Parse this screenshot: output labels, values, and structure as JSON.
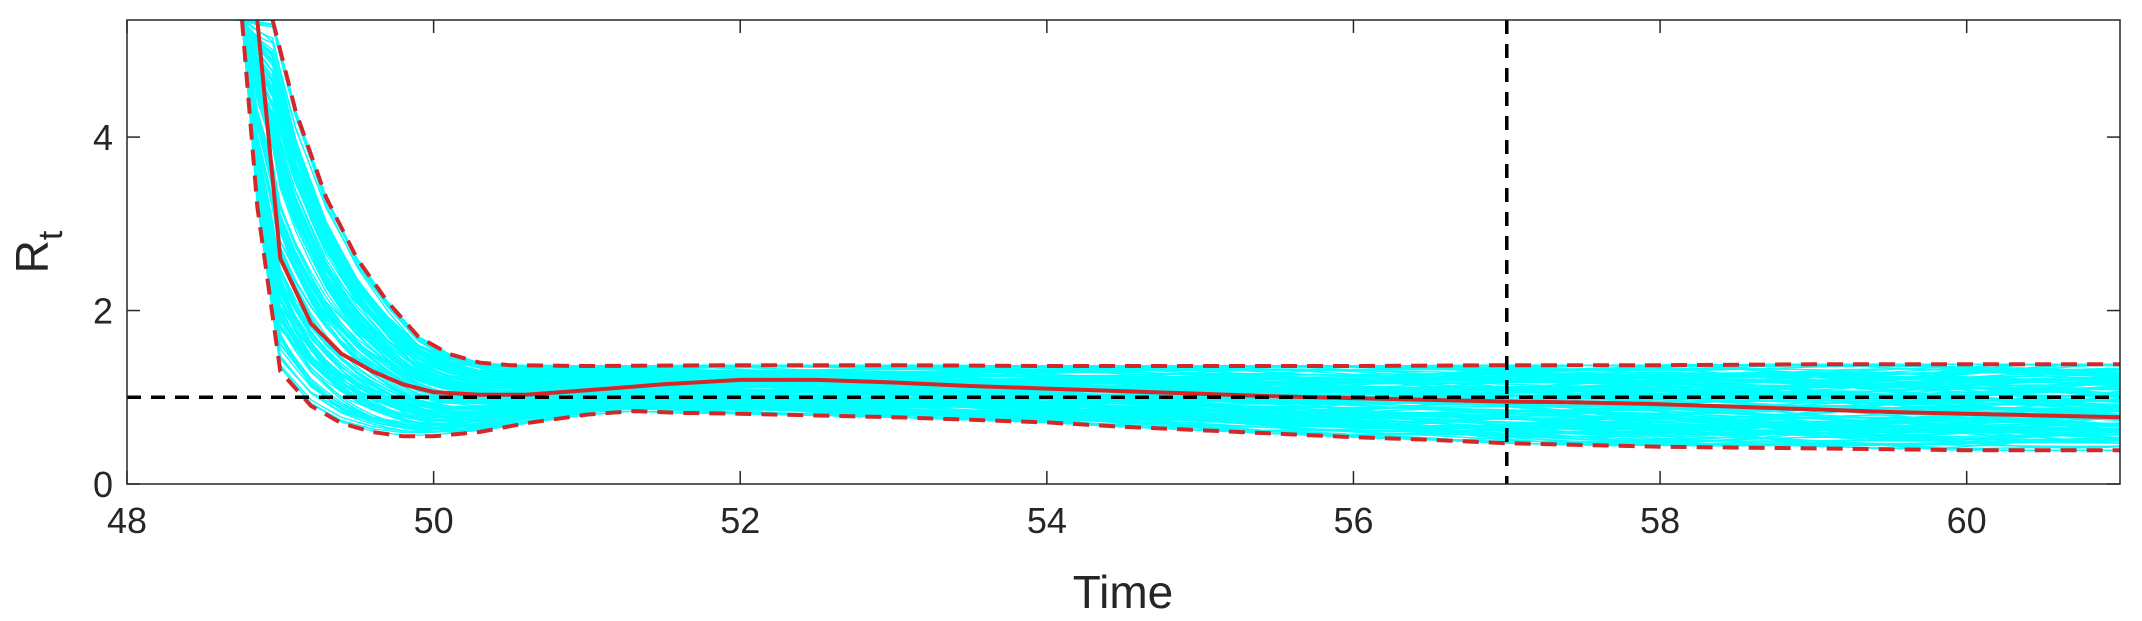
{
  "chart_data": {
    "type": "line",
    "xlabel": "Time",
    "ylabel": "R",
    "ylabel_subscript": "t",
    "xlim": [
      48,
      61
    ],
    "ylim": [
      0,
      5.35
    ],
    "xticks": [
      48,
      50,
      52,
      54,
      56,
      58,
      60
    ],
    "yticks": [
      0,
      2,
      4
    ],
    "grid": false,
    "legend": "none",
    "reference_lines": [
      {
        "orientation": "horizontal",
        "value": 1,
        "style": "dashed",
        "color": "#000000"
      },
      {
        "orientation": "vertical",
        "value": 57,
        "style": "dashed",
        "color": "#000000"
      }
    ],
    "colors": {
      "ensemble": "#00FFFF",
      "summary": "#D62728",
      "reference": "#000000"
    },
    "ensemble": {
      "count": 160,
      "color": "#00FFFF",
      "description_range": "individual trajectories spanning between the lower and upper dashed curves"
    },
    "series": [
      {
        "style": "solid",
        "color": "#D62728",
        "points": [
          [
            48.85,
            5.35
          ],
          [
            49.0,
            2.6
          ],
          [
            49.2,
            1.85
          ],
          [
            49.4,
            1.5
          ],
          [
            49.6,
            1.3
          ],
          [
            49.8,
            1.15
          ],
          [
            50.0,
            1.06
          ],
          [
            50.3,
            1.03
          ],
          [
            50.6,
            1.03
          ],
          [
            51.0,
            1.08
          ],
          [
            51.5,
            1.15
          ],
          [
            52.0,
            1.2
          ],
          [
            52.5,
            1.2
          ],
          [
            53.0,
            1.17
          ],
          [
            53.5,
            1.13
          ],
          [
            54.0,
            1.1
          ],
          [
            54.5,
            1.07
          ],
          [
            55.0,
            1.04
          ],
          [
            55.5,
            1.01
          ],
          [
            56.0,
            0.99
          ],
          [
            56.5,
            0.97
          ],
          [
            57.0,
            0.95
          ],
          [
            57.5,
            0.94
          ],
          [
            58.0,
            0.92
          ],
          [
            58.5,
            0.89
          ],
          [
            59.0,
            0.86
          ],
          [
            59.5,
            0.83
          ],
          [
            60.0,
            0.81
          ],
          [
            60.5,
            0.79
          ],
          [
            61.0,
            0.77
          ]
        ]
      },
      {
        "style": "dashed",
        "color": "#D62728",
        "points": [
          [
            48.95,
            5.35
          ],
          [
            49.1,
            4.3
          ],
          [
            49.3,
            3.3
          ],
          [
            49.5,
            2.6
          ],
          [
            49.7,
            2.1
          ],
          [
            49.9,
            1.7
          ],
          [
            50.1,
            1.5
          ],
          [
            50.3,
            1.4
          ],
          [
            50.5,
            1.37
          ],
          [
            51.0,
            1.36
          ],
          [
            52.0,
            1.37
          ],
          [
            53.0,
            1.37
          ],
          [
            54.0,
            1.36
          ],
          [
            55.0,
            1.36
          ],
          [
            56.0,
            1.36
          ],
          [
            57.0,
            1.37
          ],
          [
            58.0,
            1.37
          ],
          [
            59.0,
            1.38
          ],
          [
            60.0,
            1.38
          ],
          [
            61.0,
            1.38
          ]
        ]
      },
      {
        "style": "dashed",
        "color": "#D62728",
        "points": [
          [
            48.75,
            5.35
          ],
          [
            48.85,
            3.2
          ],
          [
            49.0,
            1.3
          ],
          [
            49.2,
            0.9
          ],
          [
            49.4,
            0.7
          ],
          [
            49.6,
            0.6
          ],
          [
            49.8,
            0.55
          ],
          [
            50.0,
            0.55
          ],
          [
            50.3,
            0.6
          ],
          [
            50.6,
            0.7
          ],
          [
            51.0,
            0.8
          ],
          [
            51.3,
            0.84
          ],
          [
            51.6,
            0.82
          ],
          [
            52.0,
            0.81
          ],
          [
            52.5,
            0.79
          ],
          [
            53.0,
            0.77
          ],
          [
            53.5,
            0.74
          ],
          [
            54.0,
            0.71
          ],
          [
            54.5,
            0.66
          ],
          [
            55.0,
            0.62
          ],
          [
            55.5,
            0.58
          ],
          [
            56.0,
            0.54
          ],
          [
            56.5,
            0.51
          ],
          [
            57.0,
            0.47
          ],
          [
            57.5,
            0.45
          ],
          [
            58.0,
            0.43
          ],
          [
            58.5,
            0.42
          ],
          [
            59.0,
            0.41
          ],
          [
            59.5,
            0.4
          ],
          [
            60.0,
            0.39
          ],
          [
            60.5,
            0.39
          ],
          [
            61.0,
            0.39
          ]
        ]
      }
    ]
  }
}
